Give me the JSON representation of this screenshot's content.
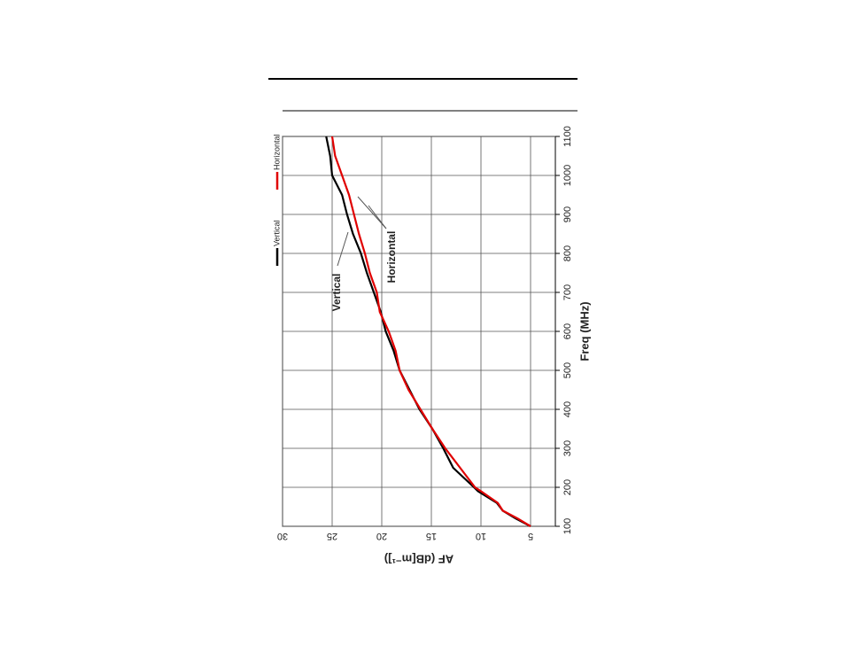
{
  "chart_data": {
    "type": "line",
    "xlabel": "Freq (MHz)",
    "ylabel": "AF (dB[m⁻¹])",
    "x": [
      100,
      120,
      140,
      160,
      190,
      200,
      250,
      300,
      350,
      400,
      450,
      500,
      550,
      600,
      650,
      700,
      750,
      800,
      850,
      900,
      950,
      1000,
      1050,
      1100
    ],
    "series": [
      {
        "name": "Vertical",
        "color": "#000000",
        "values": [
          5.0,
          6.5,
          7.8,
          8.4,
          10.3,
          10.7,
          12.8,
          13.8,
          14.9,
          16.2,
          17.2,
          18.2,
          18.8,
          19.6,
          20.1,
          20.8,
          21.5,
          22.1,
          22.9,
          23.5,
          24.0,
          25.0,
          25.2,
          25.6
        ]
      },
      {
        "name": "Horizontal",
        "color": "#e00000",
        "values": [
          5.0,
          6.3,
          7.8,
          8.3,
          10.0,
          10.6,
          12.1,
          13.6,
          14.9,
          16.1,
          17.3,
          18.2,
          18.6,
          19.3,
          20.2,
          20.5,
          21.2,
          21.7,
          22.3,
          22.8,
          23.3,
          24.0,
          24.7,
          25.0
        ]
      }
    ],
    "annotations": [
      "Vertical",
      "Horizontal"
    ],
    "xlim": [
      100,
      1100
    ],
    "xticks": [
      100,
      200,
      300,
      400,
      500,
      600,
      700,
      800,
      900,
      1000,
      1100
    ],
    "ylim": [
      2.5,
      30
    ],
    "yticks": [
      5,
      10,
      15,
      20,
      25,
      30
    ],
    "grid": true,
    "legend": "top"
  }
}
